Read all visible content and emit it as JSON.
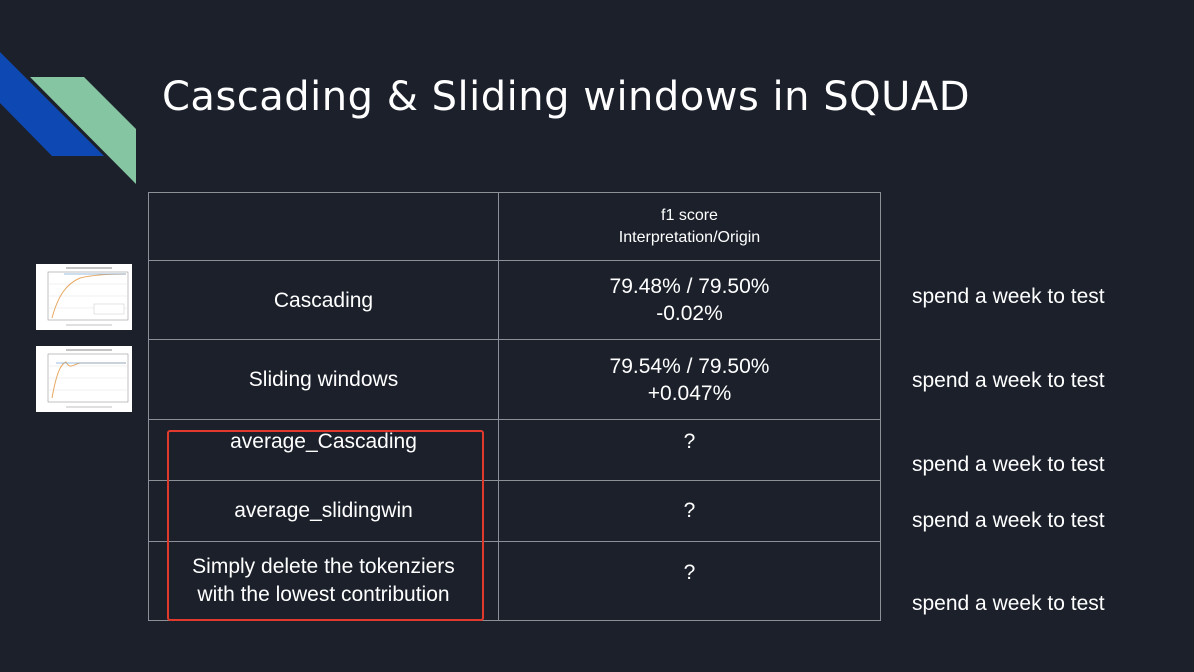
{
  "slide": {
    "title": "Cascading & Sliding windows in SQUAD"
  },
  "table": {
    "header": {
      "col2_line1": "f1 score",
      "col2_line2": "Interpretation/Origin"
    },
    "rows": [
      {
        "method": "Cascading",
        "score_line1": "79.48% / 79.50%",
        "score_line2": "-0.02%"
      },
      {
        "method": "Sliding windows",
        "score_line1": "79.54% / 79.50%",
        "score_line2": "+0.047%"
      },
      {
        "method": "average_Cascading",
        "score": "?"
      },
      {
        "method": "average_slidingwin",
        "score": "?"
      },
      {
        "method_line1": "Simply delete the tokenziers",
        "method_line2": "with the lowest contribution",
        "score": "?"
      }
    ]
  },
  "notes": [
    "spend a week to test",
    "spend a week to test",
    "spend a week to test",
    "spend a week to test",
    "spend a week to test"
  ],
  "colors": {
    "background": "#1b202b",
    "deco_blue": "#0e48b3",
    "deco_green": "#86c5a1",
    "highlight": "#e13a2c",
    "grid": "#8d9096"
  }
}
